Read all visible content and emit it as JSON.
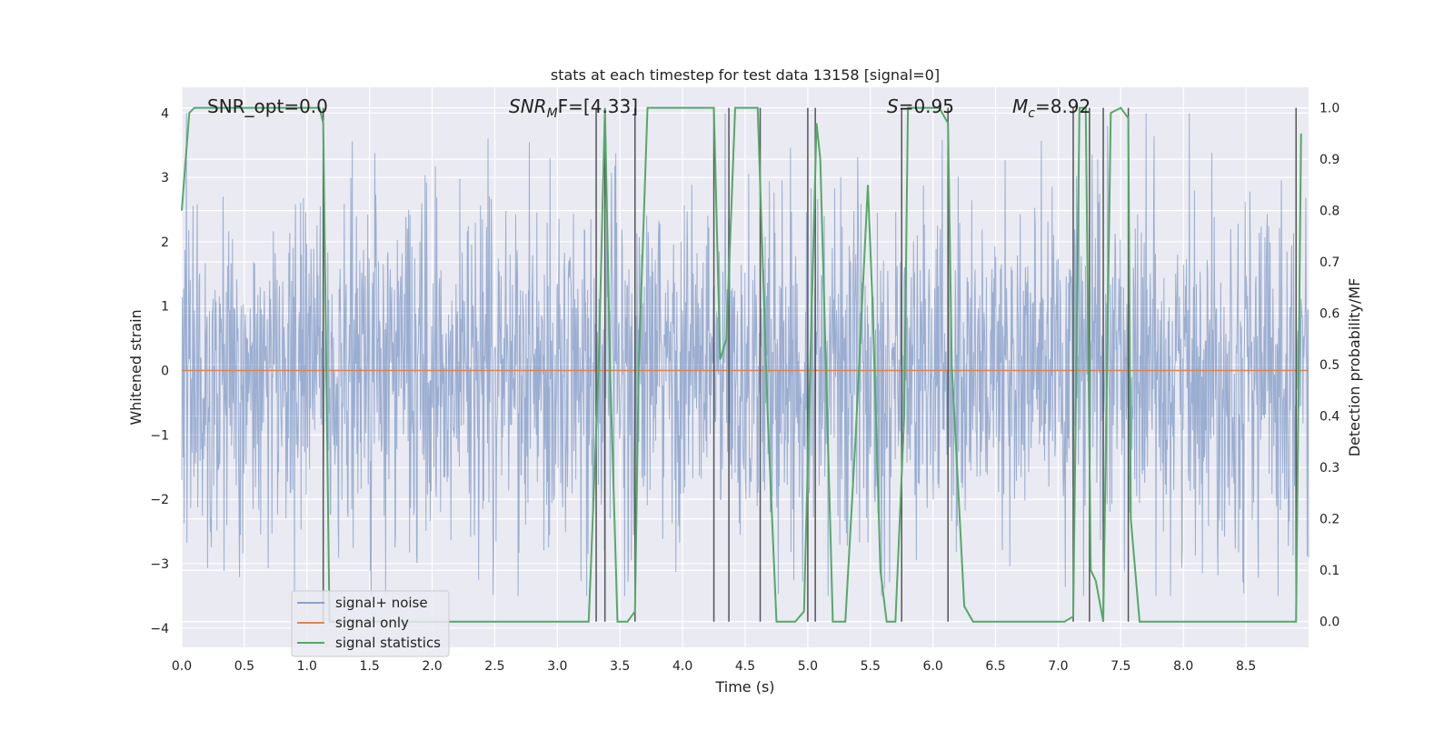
{
  "chart_data": {
    "type": "line",
    "title": "stats at each timestep for test data 13158 [signal=0]",
    "xlabel": "Time (s)",
    "ylabel": "Whitened strain",
    "y2label": "Detection probability/MF",
    "xlim": [
      0.0,
      9.0
    ],
    "ylim": [
      -4.3,
      4.4
    ],
    "y2lim": [
      -0.05,
      1.04
    ],
    "xticks": [
      "0.0",
      "0.5",
      "1.0",
      "1.5",
      "2.0",
      "2.5",
      "3.0",
      "3.5",
      "4.0",
      "4.5",
      "5.0",
      "5.5",
      "6.0",
      "6.5",
      "7.0",
      "7.5",
      "8.0",
      "8.5"
    ],
    "yticks": [
      "4",
      "3",
      "2",
      "1",
      "0",
      "−1",
      "−2",
      "−3",
      "−4"
    ],
    "y2ticks": [
      "1.0",
      "0.9",
      "0.8",
      "0.7",
      "0.6",
      "0.5",
      "0.4",
      "0.3",
      "0.2",
      "0.1",
      "0.0"
    ],
    "annotations": {
      "snr_opt": "SNR_opt=0.0",
      "snr_mf_main": "SNR",
      "snr_mf_sub": "M",
      "snr_mf_rest": "F=[4.33]",
      "s_main": "S",
      "s_rest": "=0.95",
      "mc_main": "M",
      "mc_sub": "c",
      "mc_rest": "=8.92"
    },
    "grid": true,
    "legend_position": "lower-left",
    "colors": {
      "noise": "#4c72b0",
      "signal": "#dd8452",
      "stats": "#55a868",
      "vlines": "#555555",
      "background": "#eaeaf2",
      "grid": "#ffffff"
    },
    "series": [
      {
        "name": "signal+ noise",
        "kind": "noise-band",
        "approx_range": [
          -3.5,
          4.0
        ]
      },
      {
        "name": "signal only",
        "x": [
          0.0,
          9.0
        ],
        "y": [
          0.0,
          0.0
        ]
      },
      {
        "name": "signal statistics",
        "axis": "right",
        "x": [
          0.0,
          0.06,
          0.1,
          0.3,
          0.6,
          0.9,
          1.0,
          1.1,
          1.13,
          1.18,
          1.25,
          3.0,
          3.25,
          3.27,
          3.33,
          3.38,
          3.42,
          3.48,
          3.56,
          3.62,
          3.65,
          3.72,
          3.9,
          4.1,
          4.25,
          4.3,
          4.35,
          4.42,
          4.6,
          4.68,
          4.75,
          4.9,
          4.97,
          5.02,
          5.07,
          5.1,
          5.15,
          5.2,
          5.3,
          5.38,
          5.48,
          5.52,
          5.58,
          5.63,
          5.7,
          5.77,
          5.8,
          5.9,
          6.05,
          6.12,
          6.15,
          6.25,
          6.32,
          6.6,
          6.9,
          7.05,
          7.12,
          7.17,
          7.22,
          7.26,
          7.3,
          7.36,
          7.42,
          7.5,
          7.56,
          7.58,
          7.65,
          7.9,
          8.1,
          8.3,
          8.9,
          8.94
        ],
        "y": [
          0.8,
          0.99,
          1.0,
          1.0,
          1.0,
          1.0,
          1.0,
          1.0,
          0.97,
          0.0,
          0.0,
          0.0,
          0.0,
          0.12,
          0.5,
          1.0,
          0.5,
          0.0,
          0.0,
          0.02,
          0.5,
          1.0,
          1.0,
          1.0,
          1.0,
          0.51,
          0.55,
          1.0,
          1.0,
          0.4,
          0.0,
          0.0,
          0.02,
          0.5,
          0.97,
          0.9,
          0.45,
          0.0,
          0.0,
          0.35,
          0.85,
          0.6,
          0.1,
          0.0,
          0.0,
          0.4,
          1.0,
          1.0,
          1.0,
          0.97,
          0.5,
          0.03,
          0.0,
          0.0,
          0.0,
          0.0,
          0.01,
          1.0,
          1.0,
          0.1,
          0.08,
          0.0,
          0.99,
          1.0,
          0.98,
          0.2,
          0.0,
          0.0,
          0.0,
          0.0,
          0.0,
          0.95
        ]
      }
    ],
    "vertical_lines_x": [
      1.13,
      3.31,
      3.38,
      3.62,
      4.25,
      4.37,
      4.62,
      5.0,
      5.06,
      5.75,
      6.12,
      7.12,
      7.25,
      7.36,
      7.56,
      8.9
    ]
  }
}
